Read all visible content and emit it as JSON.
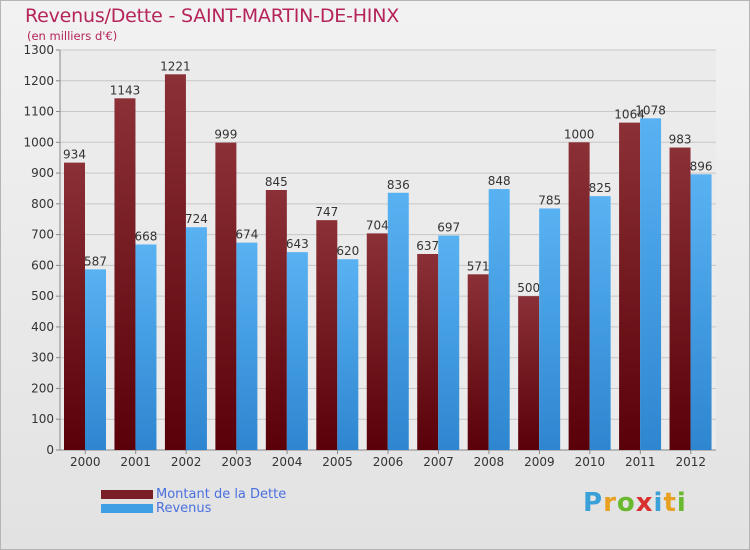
{
  "header": {
    "title": "Revenus/Dette - SAINT-MARTIN-DE-HINX",
    "subtitle": "(en milliers d'€)"
  },
  "colors": {
    "dette": "#7a1f26",
    "revenus": "#3f9fe4"
  },
  "legend": {
    "position": "bottom-left",
    "items": [
      "Montant de la Dette",
      "Revenus"
    ]
  },
  "logo": {
    "letters": [
      {
        "char": "P",
        "color": "#3aa0d8"
      },
      {
        "char": "r",
        "color": "#e8a020"
      },
      {
        "char": "o",
        "color": "#6ab82e"
      },
      {
        "char": "x",
        "color": "#d8302e"
      },
      {
        "char": "i",
        "color": "#3aa0d8"
      },
      {
        "char": "t",
        "color": "#e8a020"
      },
      {
        "char": "i",
        "color": "#6ab82e"
      }
    ]
  },
  "chart_data": {
    "type": "bar",
    "title": "Revenus/Dette - SAINT-MARTIN-DE-HINX",
    "subtitle": "(en milliers d'€)",
    "categories": [
      "2000",
      "2001",
      "2002",
      "2003",
      "2004",
      "2005",
      "2006",
      "2007",
      "2008",
      "2009",
      "2010",
      "2011",
      "2012"
    ],
    "series": [
      {
        "name": "Montant de la Dette",
        "values": [
          934,
          1143,
          1221,
          999,
          845,
          747,
          704,
          637,
          571,
          500,
          1000,
          1064,
          983
        ]
      },
      {
        "name": "Revenus",
        "values": [
          587,
          668,
          724,
          674,
          643,
          620,
          836,
          697,
          848,
          785,
          825,
          1078,
          896
        ]
      }
    ],
    "ylim": [
      0,
      1300
    ],
    "yticks": [
      0,
      100,
      200,
      300,
      400,
      500,
      600,
      700,
      800,
      900,
      1000,
      1100,
      1200,
      1300
    ],
    "grid": true,
    "legend": "bottom-left"
  }
}
